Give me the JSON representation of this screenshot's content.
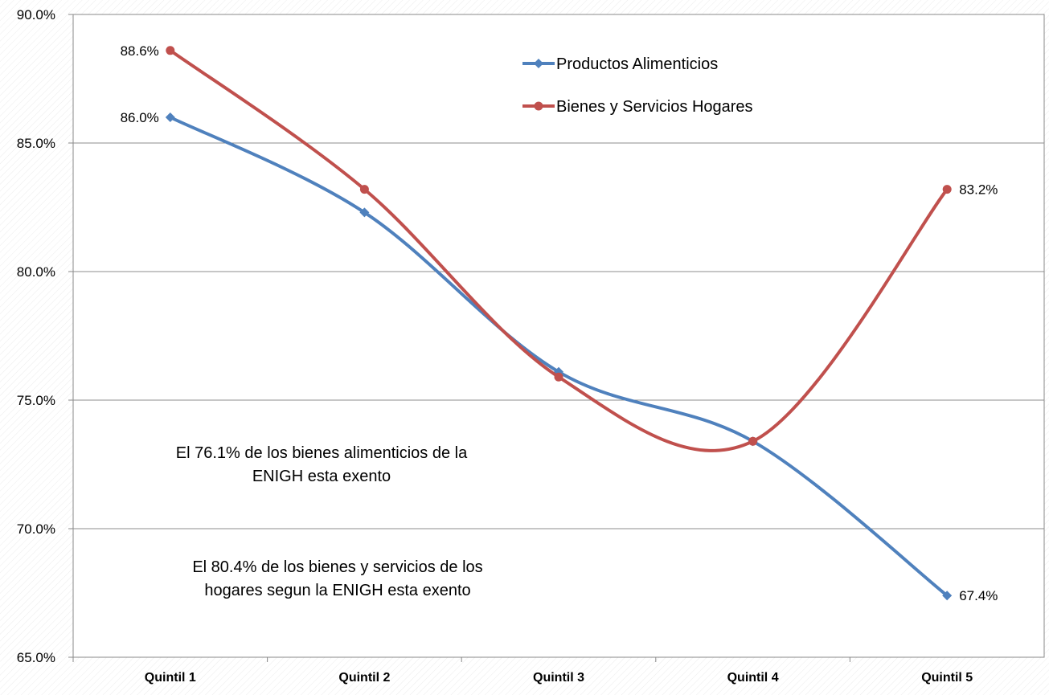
{
  "chart_data": {
    "type": "line",
    "categories": [
      "Quintil 1",
      "Quintil 2",
      "Quintil 3",
      "Quintil 4",
      "Quintil 5"
    ],
    "series": [
      {
        "name": "Productos Alimenticios",
        "values": [
          86.0,
          82.3,
          76.1,
          73.4,
          67.4
        ],
        "color": "#4f81bd",
        "marker": "diamond",
        "labels": [
          "86.0%",
          "",
          "",
          "",
          "67.4%"
        ]
      },
      {
        "name": "Bienes y Servicios Hogares",
        "values": [
          88.6,
          83.2,
          75.9,
          73.4,
          83.2
        ],
        "color": "#c0504d",
        "marker": "circle",
        "labels": [
          "88.6%",
          "",
          "",
          "",
          "83.2%"
        ]
      }
    ],
    "ylim": [
      65.0,
      90.0
    ],
    "yticks": [
      "65.0%",
      "70.0%",
      "75.0%",
      "80.0%",
      "85.0%",
      "90.0%"
    ],
    "grid": true,
    "smooth": true,
    "legend_position": "top-right",
    "annotations": [
      {
        "lines": [
          "El 76.1% de los bienes alimenticios de la",
          "ENIGH esta exento"
        ]
      },
      {
        "lines": [
          "El 80.4% de los bienes  y servicios de los",
          "hogares segun la ENIGH esta exento"
        ]
      }
    ]
  }
}
